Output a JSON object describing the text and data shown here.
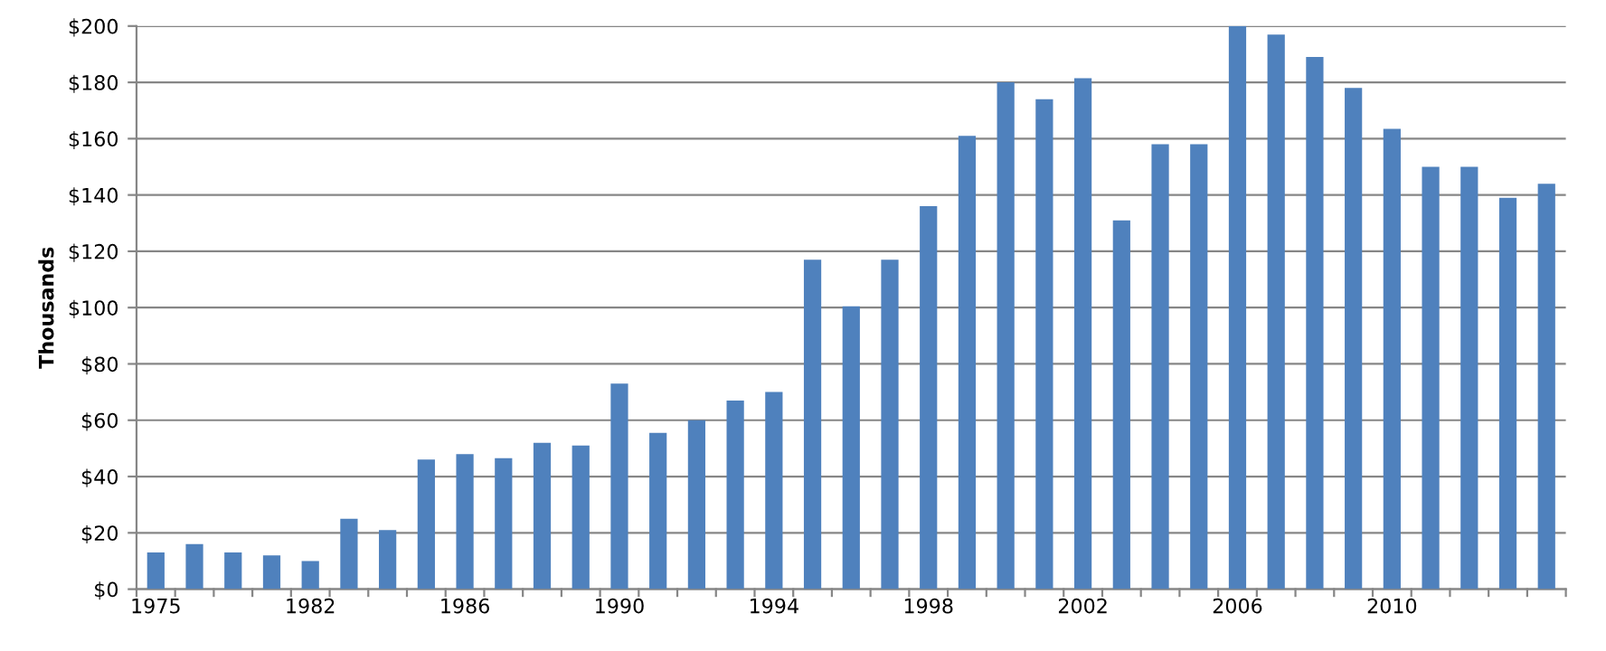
{
  "chart_data": {
    "type": "bar",
    "ylabel": "Thousands",
    "categories": [
      "1975",
      null,
      null,
      null,
      "1982",
      null,
      null,
      null,
      "1986",
      null,
      null,
      null,
      "1990",
      null,
      null,
      null,
      "1994",
      null,
      null,
      null,
      "1998",
      null,
      null,
      null,
      "2002",
      null,
      null,
      null,
      "2006",
      null,
      null,
      null,
      "2010",
      null,
      null,
      null,
      null
    ],
    "values": [
      13,
      16,
      13,
      12,
      10,
      25,
      21,
      46,
      48,
      46.5,
      52,
      51,
      73,
      55.5,
      60,
      67,
      70,
      117,
      100.5,
      117,
      136,
      161,
      180,
      174,
      181.5,
      131,
      158,
      158,
      200,
      197,
      189,
      178,
      163.5,
      150,
      150,
      139,
      144
    ],
    "color": "#4f81bd",
    "ylim": [
      0,
      200
    ],
    "yticks": [
      {
        "value": 0,
        "label": "$0"
      },
      {
        "value": 20,
        "label": "$20"
      },
      {
        "value": 40,
        "label": "$40"
      },
      {
        "value": 60,
        "label": "$60"
      },
      {
        "value": 80,
        "label": "$80"
      },
      {
        "value": 100,
        "label": "$100"
      },
      {
        "value": 120,
        "label": "$120"
      },
      {
        "value": 140,
        "label": "$140"
      },
      {
        "value": 160,
        "label": "$160"
      },
      {
        "value": 180,
        "label": "$180"
      },
      {
        "value": 200,
        "label": "$200"
      }
    ],
    "grid": "y",
    "legend": false
  }
}
